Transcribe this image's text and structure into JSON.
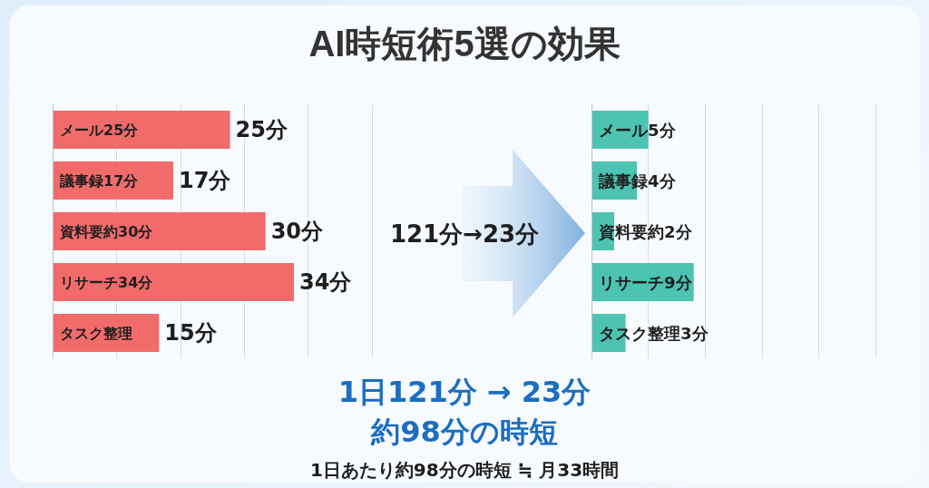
{
  "chart_data": [
    {
      "type": "bar",
      "orientation": "horizontal",
      "title": "AI時短術5選の効果",
      "categories": [
        "メール25分",
        "議事録17分",
        "資料要約30分",
        "リサーチ34分",
        "タスク整理"
      ],
      "values": [
        25,
        17,
        30,
        34,
        15
      ],
      "value_labels": [
        "25分",
        "17分",
        "30分",
        "34分",
        "15分"
      ],
      "color": "#f26b6b",
      "xlim": [
        0,
        45
      ],
      "xticks": [
        {
          "value": 0,
          "label": null
        },
        {
          "value": 9,
          "label": null
        },
        {
          "value": 18,
          "label": null
        },
        {
          "value": 27,
          "label": null
        },
        {
          "value": 36,
          "label": null
        },
        {
          "value": 45,
          "label": null
        }
      ],
      "grid": "x",
      "annotations": [
        "121分→23分",
        "1日121分 → 23分",
        "約98分の時短",
        "1日あたり約98分の時短 ≒ 月33時間"
      ]
    },
    {
      "type": "bar",
      "orientation": "horizontal",
      "categories": [
        null,
        null,
        null,
        null,
        null
      ],
      "values": [
        5,
        4,
        2,
        9,
        3
      ],
      "value_labels": [
        "メール5分",
        "議事録4分",
        "資料要約2分",
        "リサーチ9分",
        "タスク整理3分"
      ],
      "color": "#4dc3b2",
      "xlim": [
        0,
        25
      ],
      "xticks": [
        {
          "value": 0,
          "label": null
        },
        {
          "value": 5,
          "label": null
        },
        {
          "value": 10,
          "label": null
        },
        {
          "value": 15,
          "label": null
        },
        {
          "value": 20,
          "label": null
        },
        {
          "value": 25,
          "label": null
        }
      ],
      "grid": "x"
    }
  ]
}
